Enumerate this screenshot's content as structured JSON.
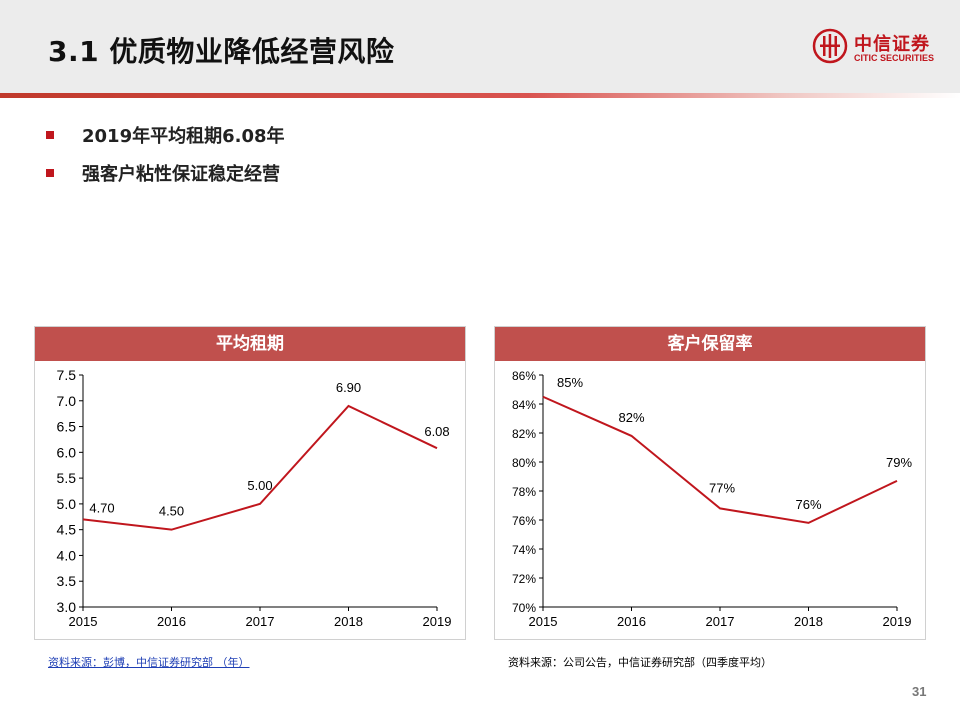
{
  "header": {
    "title": "3.1 优质物业降低经营风险",
    "logo": {
      "cn": "中信证券",
      "en": "CITIC SECURITIES",
      "color": "#c0161d"
    }
  },
  "bullets": [
    {
      "text": "2019年平均租期6.08年"
    },
    {
      "text": "强客户粘性保证稳定经营"
    }
  ],
  "accent_color": "#c0504d",
  "chart_data": [
    {
      "type": "line",
      "title": "平均租期",
      "categories": [
        "2015",
        "2016",
        "2017",
        "2018",
        "2019"
      ],
      "values": [
        4.7,
        4.5,
        5.0,
        6.9,
        6.08
      ],
      "value_labels": [
        "4.70",
        "4.50",
        "5.00",
        "6.90",
        "6.08"
      ],
      "ylim": [
        3.0,
        7.5
      ],
      "yticks": [
        3.0,
        3.5,
        4.0,
        4.5,
        5.0,
        5.5,
        6.0,
        6.5,
        7.0,
        7.5
      ],
      "ytick_labels": [
        "3.0",
        "3.5",
        "4.0",
        "4.5",
        "5.0",
        "5.5",
        "6.0",
        "6.5",
        "7.0",
        "7.5"
      ],
      "line_color": "#c0161d",
      "grid": false,
      "legend": "none"
    },
    {
      "type": "line",
      "title": "客户保留率",
      "categories": [
        "2015",
        "2016",
        "2017",
        "2018",
        "2019"
      ],
      "values": [
        84.5,
        81.8,
        76.8,
        75.8,
        78.7
      ],
      "value_labels": [
        "85%",
        "82%",
        "77%",
        "76%",
        "79%"
      ],
      "ylim": [
        70,
        86
      ],
      "yticks": [
        70,
        72,
        74,
        76,
        78,
        80,
        82,
        84,
        86
      ],
      "ytick_labels": [
        "70%",
        "72%",
        "74%",
        "76%",
        "78%",
        "80%",
        "82%",
        "84%",
        "86%"
      ],
      "line_color": "#c0161d",
      "grid": false,
      "legend": "none"
    }
  ],
  "sources": {
    "left": "资料来源：彭博，中信证券研究部  （年）",
    "right": "资料来源：公司公告，中信证券研究部（四季度平均）"
  },
  "page_number": "31"
}
